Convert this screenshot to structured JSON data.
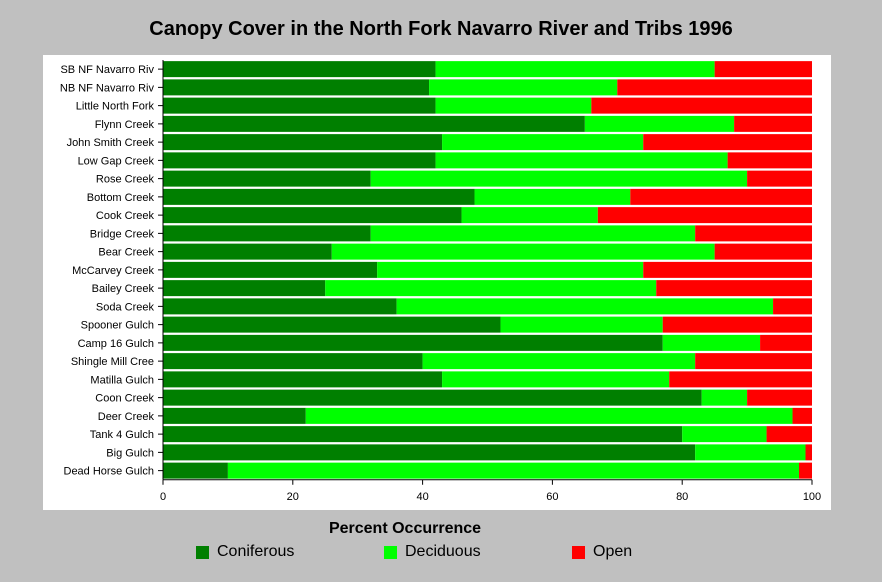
{
  "chart_data": {
    "type": "bar",
    "orientation": "horizontal",
    "stacked": true,
    "title": "Canopy Cover in the North Fork Navarro River and Tribs 1996",
    "xlabel": "Percent Occurrence",
    "xlim": [
      0,
      100
    ],
    "x_ticks": [
      "0",
      "20",
      "40",
      "60",
      "80",
      "100"
    ],
    "grid": false,
    "legend_position": "bottom",
    "categories": [
      "SB NF Navarro Riv",
      "NB NF Navarro Riv",
      "Little North Fork",
      "Flynn Creek",
      "John Smith Creek",
      "Low Gap Creek",
      "Rose Creek",
      "Bottom Creek",
      "Cook Creek",
      "Bridge Creek",
      "Bear Creek",
      "McCarvey Creek",
      "Bailey Creek",
      "Soda Creek",
      "Spooner Gulch",
      "Camp 16 Gulch",
      "Shingle Mill Cree",
      "Matilla Gulch",
      "Coon Creek",
      "Deer Creek",
      "Tank 4 Gulch",
      "Big Gulch",
      "Dead Horse Gulch"
    ],
    "series": [
      {
        "name": "Coniferous",
        "color": "#007f00",
        "values": [
          42,
          41,
          42,
          65,
          43,
          42,
          32,
          48,
          46,
          32,
          26,
          33,
          25,
          36,
          52,
          77,
          40,
          43,
          83,
          22,
          80,
          82,
          10
        ]
      },
      {
        "name": "Deciduous",
        "color": "#00ff00",
        "values": [
          43,
          29,
          24,
          23,
          31,
          45,
          58,
          24,
          21,
          50,
          59,
          41,
          51,
          58,
          25,
          15,
          42,
          35,
          7,
          75,
          13,
          17,
          88
        ]
      },
      {
        "name": "Open",
        "color": "#ff0000",
        "values": [
          15,
          30,
          34,
          12,
          26,
          13,
          10,
          28,
          33,
          18,
          15,
          26,
          24,
          6,
          23,
          8,
          18,
          22,
          10,
          3,
          7,
          1,
          2
        ]
      }
    ]
  }
}
